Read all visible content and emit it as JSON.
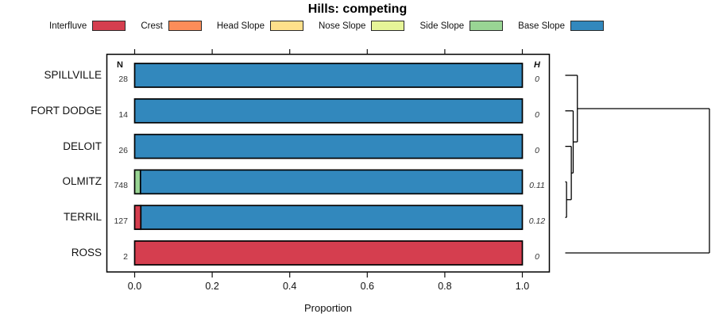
{
  "title": "Hills: competing",
  "headers": {
    "n": "N",
    "h": "H"
  },
  "axis": {
    "xlabel": "Proportion"
  },
  "legend": {
    "items": [
      {
        "label": "Interfluve",
        "color": "#D53E4F"
      },
      {
        "label": "Crest",
        "color": "#FC8D59"
      },
      {
        "label": "Head Slope",
        "color": "#FEE08B"
      },
      {
        "label": "Nose Slope",
        "color": "#E6F598"
      },
      {
        "label": "Side Slope",
        "color": "#99D594"
      },
      {
        "label": "Base Slope",
        "color": "#3288BD"
      }
    ]
  },
  "chart_data": {
    "type": "bar",
    "orientation": "horizontal-stacked",
    "title": "Hills: competing",
    "xlabel": "Proportion",
    "xlim": [
      0,
      1
    ],
    "x_ticks": [
      0,
      0.2,
      0.4,
      0.6,
      0.8,
      1.0
    ],
    "x_tick_labels": [
      "0.0",
      "0.2",
      "0.4",
      "0.6",
      "0.8",
      "1.0"
    ],
    "grid": false,
    "legend_position": "top",
    "classes": [
      "Interfluve",
      "Crest",
      "Head Slope",
      "Nose Slope",
      "Side Slope",
      "Base Slope"
    ],
    "class_colors": {
      "Interfluve": "#D53E4F",
      "Crest": "#FC8D59",
      "Head Slope": "#FEE08B",
      "Nose Slope": "#E6F598",
      "Side Slope": "#99D594",
      "Base Slope": "#3288BD"
    },
    "categories": [
      "SPILLVILLE",
      "FORT DODGE",
      "DELOIT",
      "OLMITZ",
      "TERRIL",
      "ROSS"
    ],
    "rows": [
      {
        "name": "SPILLVILLE",
        "n_label": "28",
        "h_label": "0",
        "segments": [
          {
            "class": "Base Slope",
            "value": 1.0
          }
        ]
      },
      {
        "name": "FORT DODGE",
        "n_label": "14",
        "h_label": "0",
        "segments": [
          {
            "class": "Base Slope",
            "value": 1.0
          }
        ]
      },
      {
        "name": "DELOIT",
        "n_label": "26",
        "h_label": "0",
        "segments": [
          {
            "class": "Base Slope",
            "value": 1.0
          }
        ]
      },
      {
        "name": "OLMITZ",
        "n_label": "748",
        "h_label": "0.11",
        "segments": [
          {
            "class": "Side Slope",
            "value": 0.015
          },
          {
            "class": "Base Slope",
            "value": 0.985
          }
        ]
      },
      {
        "name": "TERRIL",
        "n_label": "127",
        "h_label": "0.12",
        "segments": [
          {
            "class": "Interfluve",
            "value": 0.016
          },
          {
            "class": "Base Slope",
            "value": 0.984
          }
        ]
      },
      {
        "name": "ROSS",
        "n_label": "2",
        "h_label": "0",
        "segments": [
          {
            "class": "Interfluve",
            "value": 1.0
          }
        ]
      }
    ],
    "dendrogram": {
      "leaves": [
        "SPILLVILLE",
        "FORT DODGE",
        "DELOIT",
        "OLMITZ",
        "TERRIL",
        "ROSS"
      ],
      "merges": [
        {
          "id": "m1",
          "a": "OLMITZ",
          "b": "TERRIL",
          "height": 0.009
        },
        {
          "id": "m2",
          "a": "DELOIT",
          "b": "m1",
          "height": 0.042
        },
        {
          "id": "m3",
          "a": "FORT DODGE",
          "b": "m2",
          "height": 0.055
        },
        {
          "id": "m4",
          "a": "SPILLVILLE",
          "b": "m3",
          "height": 0.084
        },
        {
          "id": "m5",
          "a": "m4",
          "b": "ROSS",
          "height": 1.0
        }
      ]
    }
  }
}
